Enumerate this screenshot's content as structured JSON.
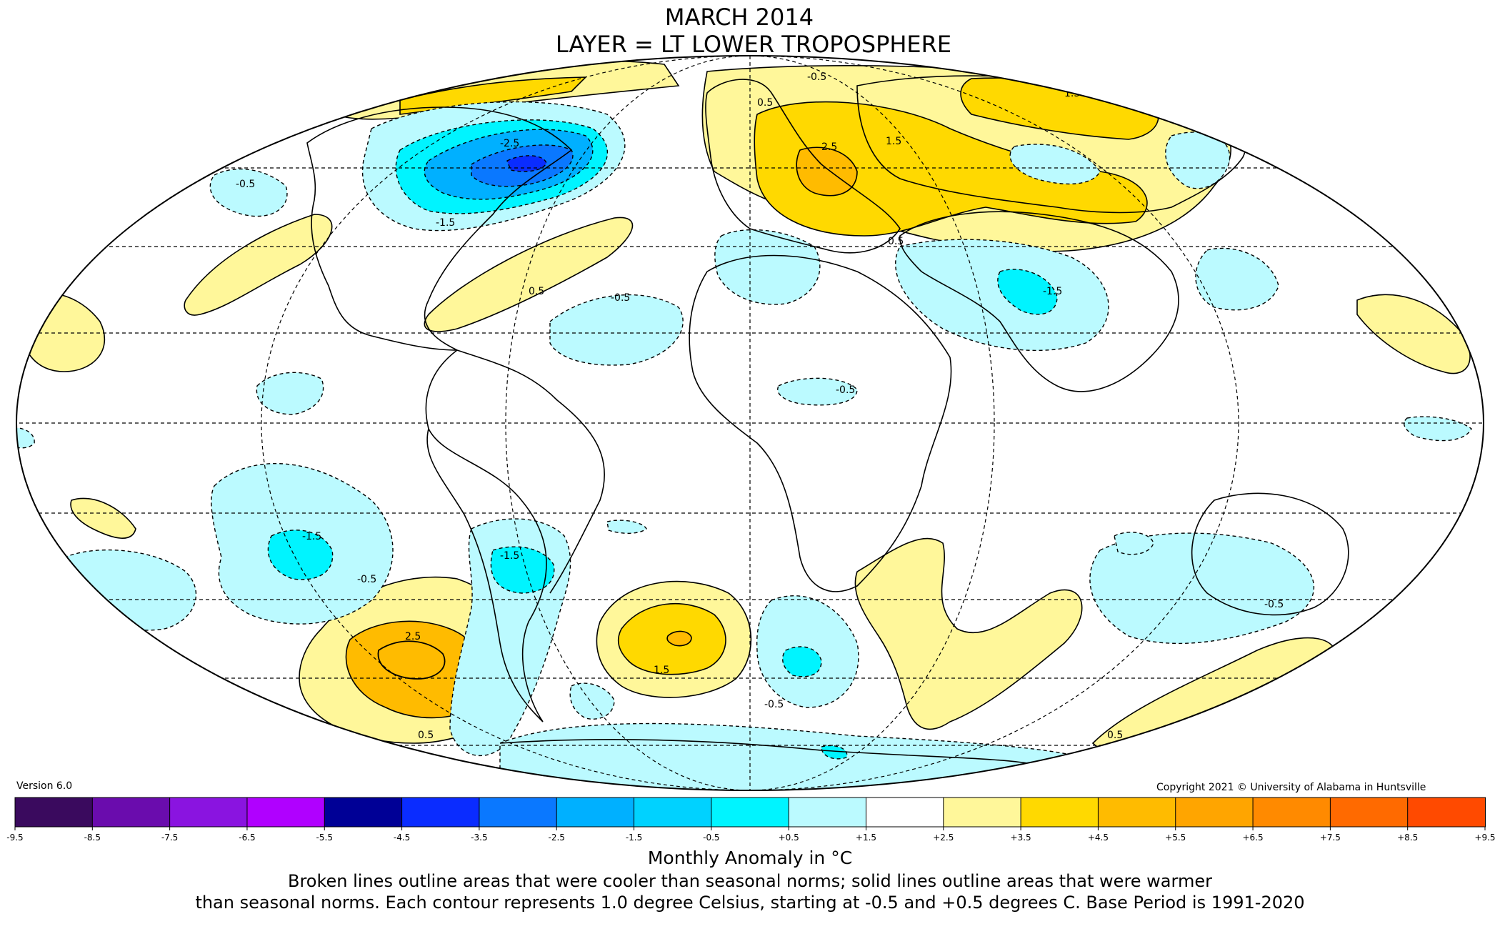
{
  "title": "MARCH 2014",
  "subtitle": "LAYER = LT LOWER TROPOSPHERE",
  "version": "Version 6.0",
  "copyright": "Copyright 2021 © University of Alabama in Huntsville",
  "colorbar": {
    "label": "Monthly Anomaly in °C",
    "ticks": [
      "-9.5",
      "-8.5",
      "-7.5",
      "-6.5",
      "-5.5",
      "-4.5",
      "-3.5",
      "-2.5",
      "-1.5",
      "-0.5",
      "+0.5",
      "+1.5",
      "+2.5",
      "+3.5",
      "+4.5",
      "+5.5",
      "+6.5",
      "+7.5",
      "+8.5",
      "+9.5"
    ],
    "colors": [
      "#3a0a5e",
      "#6a0cad",
      "#8a14e0",
      "#b000ff",
      "#000096",
      "#0a2cff",
      "#0a78ff",
      "#00b0ff",
      "#00d2ff",
      "#00f4ff",
      "#bbfaff",
      "#ffffff",
      "#fff79a",
      "#ffd900",
      "#ffbb00",
      "#ffa500",
      "#ff8a00",
      "#ff6a00",
      "#ff4a00",
      "#ff0000",
      "#e00000",
      "#b40000"
    ]
  },
  "contour_labels": [
    {
      "text": "-0.5"
    },
    {
      "text": "0.5"
    },
    {
      "text": "1.5"
    },
    {
      "text": "-1.5"
    },
    {
      "text": "2.5"
    },
    {
      "text": "-2.5"
    }
  ],
  "footer": {
    "line1": "Broken lines outline areas that were cooler than seasonal norms; solid lines outline areas that were warmer",
    "line2": "than seasonal norms. Each contour represents 1.0 degree Celsius, starting at -0.5 and +0.5 degrees C. Base Period is 1991-2020"
  }
}
